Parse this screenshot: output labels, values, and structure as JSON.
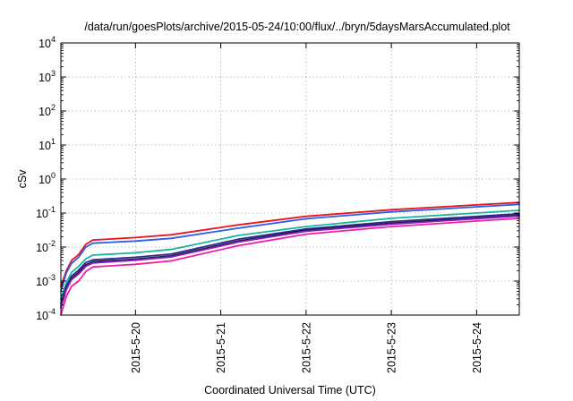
{
  "chart_data": {
    "type": "line",
    "title": "/data/run/goesPlots/archive/2015-05-24/10:00/flux/../bryn/5daysMarsAccumulated.plot",
    "xlabel": "Coordinated Universal Time (UTC)",
    "ylabel": "cSv",
    "yscale": "log",
    "ylim": [
      0.0001,
      10000
    ],
    "xlim": [
      "2015-05-19 03:00",
      "2015-05-24 12:00"
    ],
    "grid": true,
    "legend": "none",
    "x_ticks": [
      "2015-5-20",
      "2015-5-21",
      "2015-5-22",
      "2015-5-23",
      "2015-5-24"
    ],
    "y_ticks": [
      {
        "value": 0.0001,
        "base": "10",
        "exp": "-4"
      },
      {
        "value": 0.001,
        "base": "10",
        "exp": "-3"
      },
      {
        "value": 0.01,
        "base": "10",
        "exp": "-2"
      },
      {
        "value": 0.1,
        "base": "10",
        "exp": "-1"
      },
      {
        "value": 1,
        "base": "10",
        "exp": "0"
      },
      {
        "value": 10,
        "base": "10",
        "exp": "1"
      },
      {
        "value": 100,
        "base": "10",
        "exp": "2"
      },
      {
        "value": 1000,
        "base": "10",
        "exp": "3"
      },
      {
        "value": 10000,
        "base": "10",
        "exp": "4"
      }
    ],
    "x": [
      "2015-05-19 03:00",
      "2015-05-19 04:30",
      "2015-05-19 06:00",
      "2015-05-19 08:00",
      "2015-05-19 10:00",
      "2015-05-19 12:00",
      "2015-05-20 00:00",
      "2015-05-20 10:00",
      "2015-05-21 05:00",
      "2015-05-22 00:00",
      "2015-05-23 00:00",
      "2015-05-24 12:00"
    ],
    "series": [
      {
        "color": "#e8141e",
        "values": [
          0.0007,
          0.002,
          0.004,
          0.006,
          0.012,
          0.016,
          0.019,
          0.023,
          0.045,
          0.08,
          0.125,
          0.205
        ]
      },
      {
        "color": "#2a5cf0",
        "values": [
          0.0005,
          0.0017,
          0.0033,
          0.005,
          0.01,
          0.013,
          0.015,
          0.018,
          0.036,
          0.068,
          0.108,
          0.18
        ]
      },
      {
        "color": "#18b4a0",
        "values": [
          0.0003,
          0.0009,
          0.0018,
          0.0027,
          0.0045,
          0.0058,
          0.0068,
          0.0085,
          0.022,
          0.04,
          0.07,
          0.12
        ]
      },
      {
        "color": "#2b2b8c",
        "values": [
          0.00022,
          0.0007,
          0.0014,
          0.0021,
          0.0035,
          0.0042,
          0.005,
          0.0062,
          0.017,
          0.034,
          0.056,
          0.095
        ]
      },
      {
        "color": "#1a1a40",
        "values": [
          0.00018,
          0.0006,
          0.0012,
          0.0018,
          0.003,
          0.0037,
          0.0044,
          0.0055,
          0.015,
          0.031,
          0.05,
          0.086
        ]
      },
      {
        "color": "#8a1ec8",
        "values": [
          0.00016,
          0.00055,
          0.0011,
          0.0016,
          0.0027,
          0.0034,
          0.0041,
          0.0051,
          0.014,
          0.029,
          0.047,
          0.082
        ]
      },
      {
        "color": "#f01ea0",
        "values": [
          0.0001,
          0.00035,
          0.0007,
          0.001,
          0.0019,
          0.0026,
          0.0031,
          0.0039,
          0.011,
          0.024,
          0.04,
          0.07
        ]
      }
    ]
  }
}
